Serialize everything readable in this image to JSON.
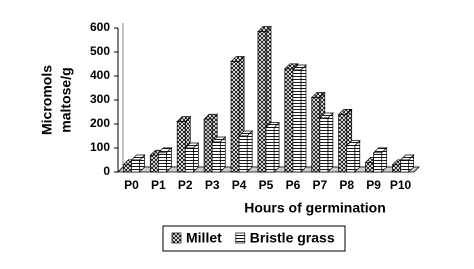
{
  "chart_data": {
    "type": "bar",
    "ylabel": [
      "Micromols",
      "maltose/g"
    ],
    "xlabel": "Hours of germination",
    "categories": [
      "P0",
      "P1",
      "P2",
      "P3",
      "P4",
      "P5",
      "P6",
      "P7",
      "P8",
      "P9",
      "P10"
    ],
    "series": [
      {
        "name": "Millet",
        "values": [
          30,
          70,
          210,
          220,
          460,
          585,
          430,
          310,
          240,
          40,
          30
        ]
      },
      {
        "name": "Bristle grass",
        "values": [
          50,
          80,
          100,
          125,
          150,
          185,
          425,
          225,
          110,
          80,
          50
        ]
      }
    ],
    "ylim": [
      0,
      600
    ],
    "yticks": [
      0,
      100,
      200,
      300,
      400,
      500,
      600
    ],
    "grid": false,
    "legend": "bottom"
  }
}
